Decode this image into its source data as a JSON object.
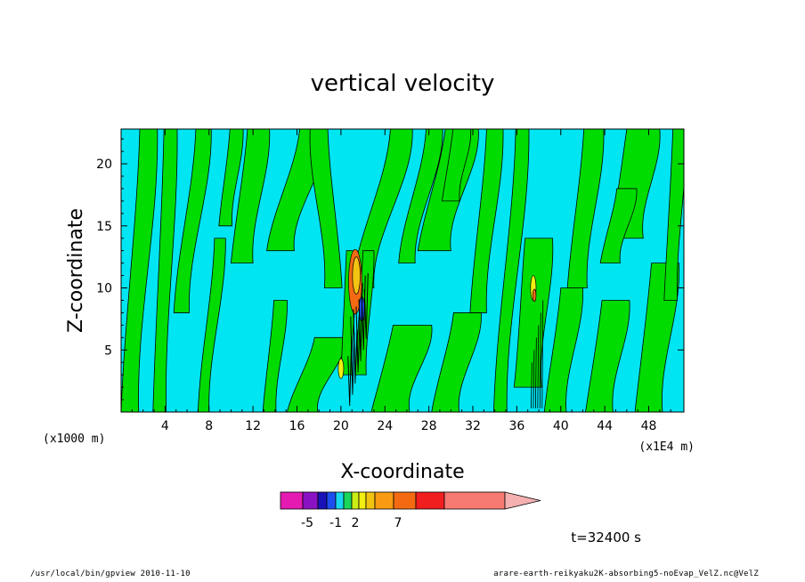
{
  "chart_data": {
    "type": "contour",
    "title": "vertical velocity",
    "xlabel": "X-coordinate",
    "ylabel": "Z-coordinate",
    "x_unit_left": "(x1000 m)",
    "x_unit_right": "(x1E4 m)",
    "xlim": [
      0,
      51.2
    ],
    "ylim": [
      0,
      22.8
    ],
    "x_ticks": [
      4,
      8,
      12,
      16,
      20,
      24,
      28,
      32,
      36,
      40,
      44,
      48
    ],
    "x_tick_labels": [
      "4",
      "8",
      "12",
      "16",
      "20",
      "24",
      "28",
      "32",
      "36",
      "40",
      "44",
      "48"
    ],
    "y_ticks": [
      5,
      10,
      15,
      20
    ],
    "y_tick_labels": [
      "5",
      "10",
      "15",
      "20"
    ],
    "colorbar": {
      "colors": [
        "#e41ab2",
        "#8a12c2",
        "#1a12b8",
        "#1d4ef0",
        "#19d6f0",
        "#1ad65a",
        "#ccec16",
        "#f3f011",
        "#f3c312",
        "#f89a12",
        "#f46a12",
        "#f01e1e",
        "#f77a72",
        "#f5b0b0"
      ],
      "tick_labels": [
        "-5",
        "-1",
        "2",
        "7"
      ]
    },
    "time_label": "t=32400 s",
    "dominant_fields": [
      {
        "name": "negative",
        "color": "#00e5f2"
      },
      {
        "name": "positive",
        "color": "#00dc00"
      }
    ]
  },
  "footer": {
    "left": "/usr/local/bin/gpview  2010-11-10",
    "right": "arare-earth-reikyaku2K-absorbing5-noEvap_VelZ.nc@VelZ"
  }
}
